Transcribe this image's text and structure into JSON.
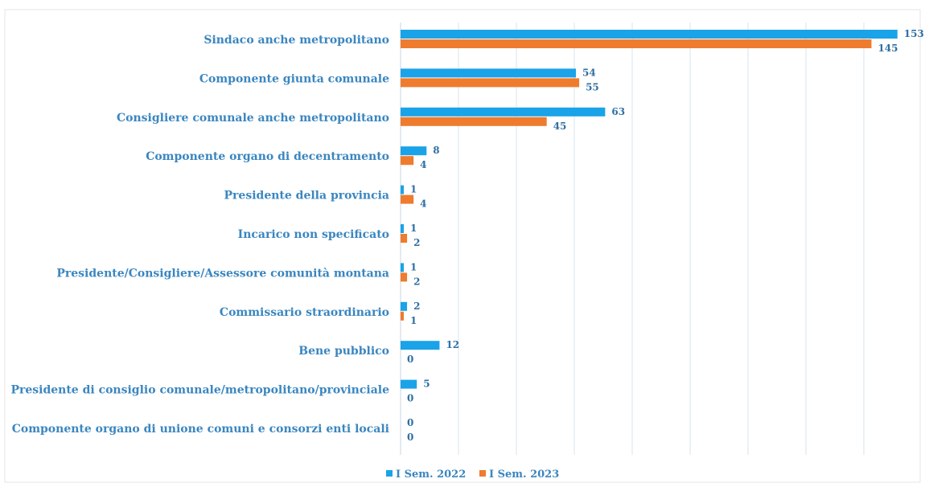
{
  "chart_data": {
    "type": "bar",
    "orientation": "horizontal",
    "categories": [
      "Sindaco anche metropolitano",
      "Componente giunta comunale",
      "Consigliere comunale anche metropolitano",
      "Componente organo di decentramento",
      "Presidente della provincia",
      "Incarico non specificato",
      "Presidente/Consigliere/Assessore comunità montana",
      "Commissario straordinario",
      "Bene pubblico",
      "Presidente di consiglio comunale/metropolitano/provinciale",
      "Componente organo di unione comuni e consorzi enti locali"
    ],
    "series": [
      {
        "name": "I Sem. 2022",
        "color": "#1aa3e8",
        "values": [
          153,
          54,
          63,
          8,
          1,
          1,
          1,
          2,
          12,
          5,
          0
        ]
      },
      {
        "name": "I Sem. 2023",
        "color": "#ef7b2f",
        "values": [
          145,
          55,
          45,
          4,
          4,
          2,
          2,
          1,
          0,
          0,
          0
        ]
      }
    ],
    "xlim": [
      0,
      160
    ],
    "grid": true,
    "legend_position": "bottom"
  }
}
